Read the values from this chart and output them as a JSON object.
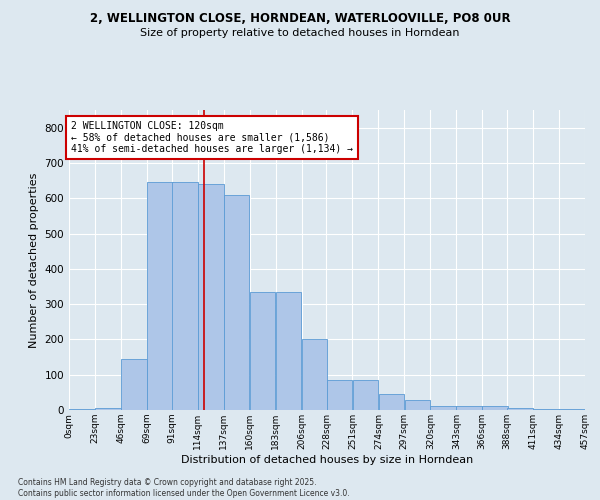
{
  "title_line1": "2, WELLINGTON CLOSE, HORNDEAN, WATERLOOVILLE, PO8 0UR",
  "title_line2": "Size of property relative to detached houses in Horndean",
  "xlabel": "Distribution of detached houses by size in Horndean",
  "ylabel": "Number of detached properties",
  "footer_line1": "Contains HM Land Registry data © Crown copyright and database right 2025.",
  "footer_line2": "Contains public sector information licensed under the Open Government Licence v3.0.",
  "annotation_line1": "2 WELLINGTON CLOSE: 120sqm",
  "annotation_line2": "← 58% of detached houses are smaller (1,586)",
  "annotation_line3": "41% of semi-detached houses are larger (1,134) →",
  "property_line_x": 120,
  "bar_color": "#aec6e8",
  "bar_edge_color": "#5b9bd5",
  "annotation_box_color": "#ffffff",
  "annotation_box_edge": "#cc0000",
  "vertical_line_color": "#cc0000",
  "background_color": "#dde8f0",
  "grid_color": "#ffffff",
  "bins": [
    0,
    23,
    46,
    69,
    91,
    114,
    137,
    160,
    183,
    206,
    228,
    251,
    274,
    297,
    320,
    343,
    366,
    388,
    411,
    434,
    457
  ],
  "bin_labels": [
    "0sqm",
    "23sqm",
    "46sqm",
    "69sqm",
    "91sqm",
    "114sqm",
    "137sqm",
    "160sqm",
    "183sqm",
    "206sqm",
    "228sqm",
    "251sqm",
    "274sqm",
    "297sqm",
    "320sqm",
    "343sqm",
    "366sqm",
    "388sqm",
    "411sqm",
    "434sqm",
    "457sqm"
  ],
  "values": [
    3,
    5,
    145,
    645,
    645,
    640,
    610,
    335,
    335,
    200,
    85,
    85,
    46,
    28,
    12,
    10,
    10,
    5,
    2,
    2,
    3
  ],
  "ylim": [
    0,
    850
  ],
  "yticks": [
    0,
    100,
    200,
    300,
    400,
    500,
    600,
    700,
    800
  ]
}
